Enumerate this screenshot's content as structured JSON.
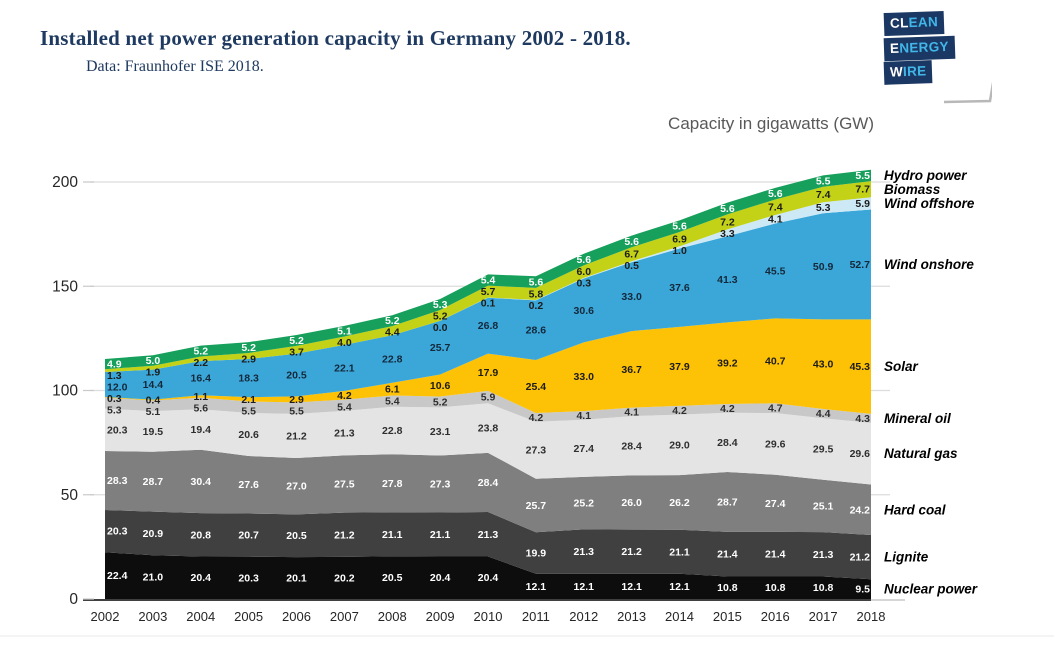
{
  "header": {
    "title": "Installed net power generation capacity in Germany 2002 - 2018.",
    "subtitle": "Data: Fraunhofer ISE 2018.",
    "logo_lines": [
      {
        "white": "CL",
        "blue": "EAN"
      },
      {
        "white": "E",
        "blue": "NERGY"
      },
      {
        "white": "W",
        "blue": "IRE"
      }
    ]
  },
  "chart_data": {
    "type": "area",
    "stacked": true,
    "unit_label": "Capacity in gigawatts (GW)",
    "x": [
      2002,
      2003,
      2004,
      2005,
      2006,
      2007,
      2008,
      2009,
      2010,
      2011,
      2012,
      2013,
      2014,
      2015,
      2016,
      2017,
      2018
    ],
    "ylim": [
      0,
      200
    ],
    "yticks": [
      0,
      50,
      100,
      150,
      200
    ],
    "grid": true,
    "legend_position": "right",
    "series_bottom_to_top": [
      {
        "name": "Nuclear power",
        "color": "#0d0d0d",
        "label_color": "#ffffff",
        "values": [
          22.4,
          21.0,
          20.4,
          20.3,
          20.1,
          20.2,
          20.5,
          20.4,
          20.4,
          12.1,
          12.1,
          12.1,
          12.1,
          10.8,
          10.8,
          10.8,
          9.5
        ]
      },
      {
        "name": "Lignite",
        "color": "#404040",
        "label_color": "#ffffff",
        "values": [
          20.3,
          20.9,
          20.8,
          20.7,
          20.5,
          21.2,
          21.1,
          21.1,
          21.3,
          19.9,
          21.3,
          21.2,
          21.1,
          21.4,
          21.4,
          21.3,
          21.2
        ]
      },
      {
        "name": "Hard coal",
        "color": "#7f7f7f",
        "label_color": "#ffffff",
        "values": [
          28.3,
          28.7,
          30.4,
          27.6,
          27.0,
          27.5,
          27.8,
          27.3,
          28.4,
          25.7,
          25.2,
          26.0,
          26.2,
          28.7,
          27.4,
          25.1,
          24.2
        ]
      },
      {
        "name": "Natural gas",
        "color": "#e4e4e4",
        "label_color": "#2e2e2e",
        "values": [
          20.3,
          19.5,
          19.4,
          20.6,
          21.2,
          21.3,
          22.8,
          23.1,
          23.8,
          27.3,
          27.4,
          28.4,
          29.0,
          28.4,
          29.6,
          29.5,
          29.6
        ]
      },
      {
        "name": "Mineral oil",
        "color": "#c8c8c8",
        "label_color": "#2e2e2e",
        "values": [
          5.3,
          5.1,
          5.6,
          5.5,
          5.5,
          5.4,
          5.4,
          5.2,
          5.9,
          4.2,
          4.1,
          4.1,
          4.2,
          4.2,
          4.7,
          4.4,
          4.3
        ]
      },
      {
        "name": "Solar",
        "color": "#fdc105",
        "label_color": "#1c1c1c",
        "values": [
          0.3,
          0.4,
          1.1,
          2.1,
          2.9,
          4.2,
          6.1,
          10.6,
          17.9,
          25.4,
          33.0,
          36.7,
          37.9,
          39.2,
          40.7,
          43.0,
          45.3
        ]
      },
      {
        "name": "Wind onshore",
        "color": "#3ba7d9",
        "label_color": "#14283a",
        "values": [
          12.0,
          14.4,
          16.4,
          18.3,
          20.5,
          22.1,
          22.8,
          25.7,
          26.8,
          28.6,
          30.6,
          33.0,
          37.6,
          41.3,
          45.5,
          50.9,
          52.7
        ]
      },
      {
        "name": "Wind offshore",
        "color": "#cde9f6",
        "label_color": "#1c1c1c",
        "values": [
          null,
          null,
          null,
          null,
          null,
          null,
          null,
          0.0,
          0.1,
          0.2,
          0.3,
          0.5,
          1.0,
          3.3,
          4.1,
          5.3,
          5.9
        ]
      },
      {
        "name": "Biomass",
        "color": "#c3d117",
        "label_color": "#1c1c1c",
        "values": [
          1.3,
          1.9,
          2.2,
          2.9,
          3.7,
          4.0,
          4.4,
          5.2,
          5.7,
          5.8,
          6.0,
          6.7,
          6.9,
          7.2,
          7.4,
          7.4,
          7.7
        ]
      },
      {
        "name": "Hydro power",
        "color": "#17a05c",
        "label_color": "#ffffff",
        "values": [
          4.9,
          5.0,
          5.2,
          5.2,
          5.2,
          5.1,
          5.2,
          5.3,
          5.4,
          5.6,
          5.6,
          5.6,
          5.6,
          5.6,
          5.6,
          5.5,
          5.5
        ]
      }
    ]
  }
}
